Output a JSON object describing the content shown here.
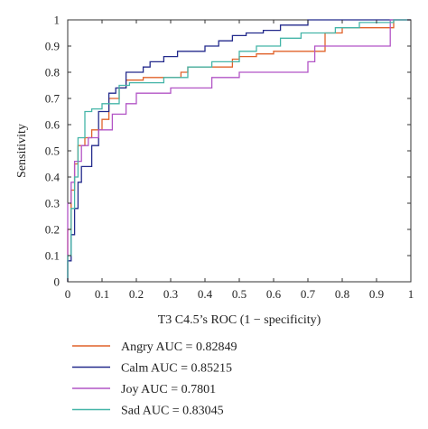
{
  "chart_data": {
    "type": "line",
    "title": "",
    "xlabel": "T3 C4.5’s ROC (1 − specificity)",
    "ylabel": "Sensitivity",
    "xlim": [
      0,
      1
    ],
    "ylim": [
      0,
      1
    ],
    "xticks": [
      0,
      0.1,
      0.2,
      0.3,
      0.4,
      0.5,
      0.6,
      0.7,
      0.8,
      0.9,
      1
    ],
    "xtick_labels": [
      "0",
      "0.1",
      "0.2",
      "0.3",
      "0.4",
      "0.5",
      "0.6",
      "0.7",
      "0.8",
      "0.9",
      "1"
    ],
    "yticks": [
      0,
      0.1,
      0.2,
      0.3,
      0.4,
      0.5,
      0.6,
      0.7,
      0.8,
      0.9,
      1
    ],
    "ytick_labels": [
      "0",
      "0.1",
      "0.2",
      "0.3",
      "0.4",
      "0.5",
      "0.6",
      "0.7",
      "0.8",
      "0.9",
      "1"
    ],
    "grid": false,
    "legend_position": "below",
    "series": [
      {
        "name": "Angry AUC = 0.82849",
        "color": "#e0622a",
        "x": [
          0,
          0,
          0.01,
          0.01,
          0.02,
          0.02,
          0.03,
          0.03,
          0.05,
          0.05,
          0.07,
          0.07,
          0.1,
          0.1,
          0.12,
          0.12,
          0.15,
          0.15,
          0.17,
          0.17,
          0.22,
          0.22,
          0.33,
          0.33,
          0.35,
          0.35,
          0.48,
          0.48,
          0.5,
          0.5,
          0.55,
          0.55,
          0.6,
          0.6,
          0.75,
          0.75,
          0.8,
          0.8,
          0.95,
          0.95,
          1
        ],
        "y": [
          0,
          0.2,
          0.2,
          0.35,
          0.35,
          0.45,
          0.45,
          0.52,
          0.52,
          0.55,
          0.55,
          0.58,
          0.58,
          0.62,
          0.62,
          0.7,
          0.7,
          0.74,
          0.74,
          0.77,
          0.77,
          0.78,
          0.78,
          0.8,
          0.8,
          0.82,
          0.82,
          0.85,
          0.85,
          0.86,
          0.86,
          0.87,
          0.87,
          0.88,
          0.88,
          0.95,
          0.95,
          0.97,
          0.97,
          1,
          1
        ]
      },
      {
        "name": "Calm AUC = 0.85215",
        "color": "#232a8c",
        "x": [
          0,
          0,
          0.01,
          0.01,
          0.02,
          0.02,
          0.03,
          0.03,
          0.04,
          0.04,
          0.07,
          0.07,
          0.09,
          0.09,
          0.12,
          0.12,
          0.14,
          0.14,
          0.17,
          0.17,
          0.22,
          0.22,
          0.24,
          0.24,
          0.28,
          0.28,
          0.32,
          0.32,
          0.4,
          0.4,
          0.44,
          0.44,
          0.48,
          0.48,
          0.52,
          0.52,
          0.57,
          0.57,
          0.62,
          0.62,
          0.7,
          0.7,
          1
        ],
        "y": [
          0,
          0.08,
          0.08,
          0.18,
          0.18,
          0.28,
          0.28,
          0.38,
          0.38,
          0.44,
          0.44,
          0.52,
          0.52,
          0.65,
          0.65,
          0.72,
          0.72,
          0.74,
          0.74,
          0.8,
          0.8,
          0.82,
          0.82,
          0.84,
          0.84,
          0.86,
          0.86,
          0.88,
          0.88,
          0.9,
          0.9,
          0.92,
          0.92,
          0.94,
          0.94,
          0.95,
          0.95,
          0.96,
          0.96,
          0.98,
          0.98,
          1,
          1
        ]
      },
      {
        "name": "Joy AUC = 0.7801",
        "color": "#b255c6",
        "x": [
          0,
          0,
          0.01,
          0.01,
          0.02,
          0.02,
          0.04,
          0.04,
          0.06,
          0.06,
          0.09,
          0.09,
          0.13,
          0.13,
          0.17,
          0.17,
          0.2,
          0.2,
          0.3,
          0.3,
          0.42,
          0.42,
          0.5,
          0.5,
          0.7,
          0.7,
          0.72,
          0.72,
          0.94,
          0.94,
          1
        ],
        "y": [
          0,
          0.3,
          0.3,
          0.38,
          0.38,
          0.46,
          0.46,
          0.52,
          0.52,
          0.55,
          0.55,
          0.58,
          0.58,
          0.64,
          0.64,
          0.68,
          0.68,
          0.72,
          0.72,
          0.74,
          0.74,
          0.78,
          0.78,
          0.8,
          0.8,
          0.84,
          0.84,
          0.9,
          0.9,
          1,
          1
        ]
      },
      {
        "name": "Sad AUC = 0.83045",
        "color": "#44b5a8",
        "x": [
          0,
          0,
          0.01,
          0.01,
          0.02,
          0.02,
          0.03,
          0.03,
          0.05,
          0.05,
          0.07,
          0.07,
          0.1,
          0.1,
          0.15,
          0.15,
          0.18,
          0.18,
          0.28,
          0.28,
          0.35,
          0.35,
          0.42,
          0.42,
          0.5,
          0.5,
          0.55,
          0.55,
          0.62,
          0.62,
          0.68,
          0.68,
          0.78,
          0.78,
          0.85,
          0.85,
          0.95,
          0.95,
          1
        ],
        "y": [
          0,
          0.1,
          0.1,
          0.28,
          0.28,
          0.4,
          0.4,
          0.55,
          0.55,
          0.65,
          0.65,
          0.66,
          0.66,
          0.68,
          0.68,
          0.75,
          0.75,
          0.76,
          0.76,
          0.78,
          0.78,
          0.82,
          0.82,
          0.84,
          0.84,
          0.88,
          0.88,
          0.9,
          0.9,
          0.93,
          0.93,
          0.95,
          0.95,
          0.97,
          0.97,
          0.99,
          0.99,
          1,
          1
        ]
      }
    ]
  }
}
